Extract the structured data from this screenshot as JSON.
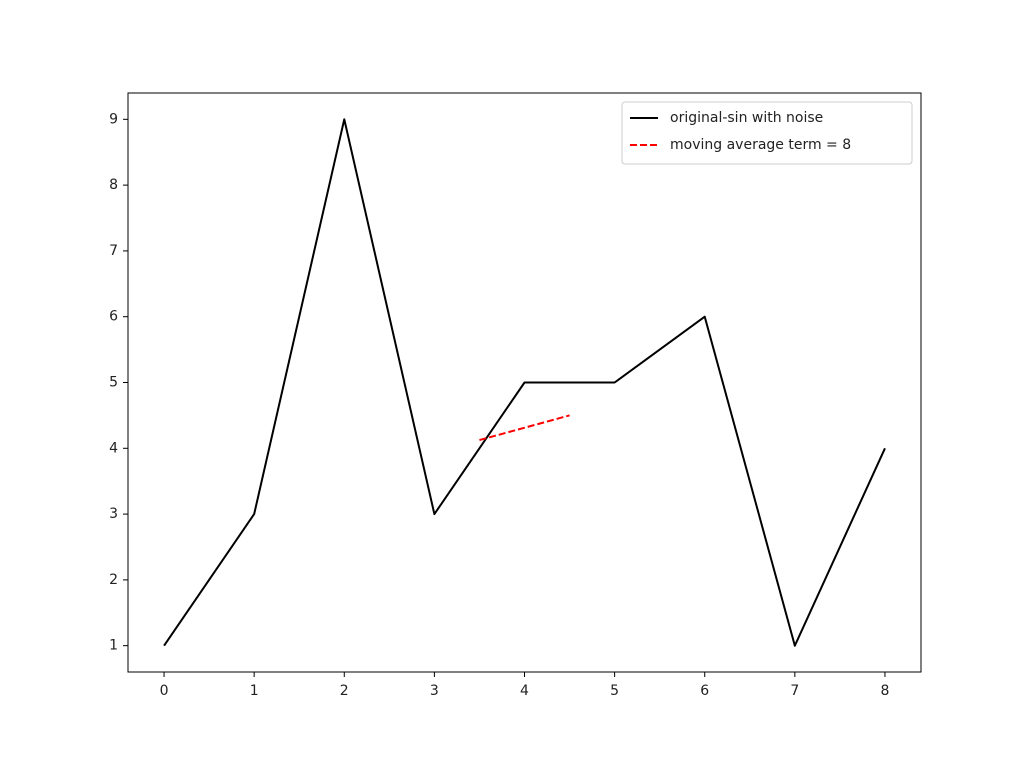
{
  "chart_data": {
    "type": "line",
    "series": [
      {
        "name": "original-sin with noise",
        "color": "#000000",
        "linestyle": "solid",
        "x": [
          0,
          1,
          2,
          3,
          4,
          5,
          6,
          7,
          8
        ],
        "values": [
          1,
          3,
          9,
          3,
          5,
          5,
          6,
          1,
          4
        ]
      },
      {
        "name": "moving average term = 8",
        "color": "#ff0000",
        "linestyle": "dashed",
        "x": [
          3.5,
          4.5
        ],
        "values": [
          4.125,
          4.5
        ]
      }
    ],
    "xlim": [
      -0.4,
      8.4
    ],
    "xticks": [
      0,
      1,
      2,
      3,
      4,
      5,
      6,
      7,
      8
    ],
    "ylim": [
      0.6,
      9.4
    ],
    "yticks": [
      1,
      2,
      3,
      4,
      5,
      6,
      7,
      8,
      9
    ],
    "grid": false,
    "legend": "upper right"
  }
}
